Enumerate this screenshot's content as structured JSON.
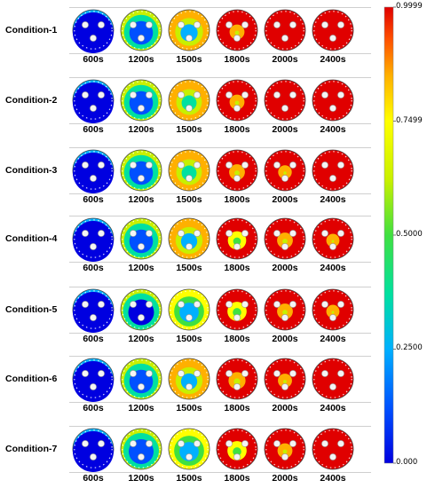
{
  "conditions": [
    "Condition-1",
    "Condition-2",
    "Condition-3",
    "Condition-4",
    "Condition-5",
    "Condition-6",
    "Condition-7"
  ],
  "times": [
    "600s",
    "1200s",
    "1500s",
    "1800s",
    "2000s",
    "2400s"
  ],
  "colorbar": {
    "ticks": [
      "0.9999",
      "0.7499",
      "0.5000",
      "0.2500",
      "0.000"
    ],
    "tick_values": [
      0.9999,
      0.7499,
      0.5,
      0.25,
      0.0
    ],
    "range": [
      0.0,
      0.9999
    ],
    "colormap": [
      "#0000e0",
      "#0050ff",
      "#00b0ff",
      "#00e0a0",
      "#40e040",
      "#c8f000",
      "#ffff00",
      "#ffb000",
      "#ff5000",
      "#e00000"
    ]
  },
  "levels_by_condition": [
    [
      0.05,
      0.45,
      0.6,
      0.9,
      0.96,
      1.0
    ],
    [
      0.05,
      0.45,
      0.65,
      0.9,
      0.96,
      1.0
    ],
    [
      0.05,
      0.45,
      0.65,
      0.88,
      0.93,
      0.98
    ],
    [
      0.05,
      0.45,
      0.62,
      0.82,
      0.88,
      0.94
    ],
    [
      0.05,
      0.4,
      0.55,
      0.8,
      0.88,
      0.94
    ],
    [
      0.05,
      0.45,
      0.62,
      0.85,
      0.92,
      0.96
    ],
    [
      0.05,
      0.42,
      0.55,
      0.8,
      0.9,
      0.97
    ]
  ]
}
